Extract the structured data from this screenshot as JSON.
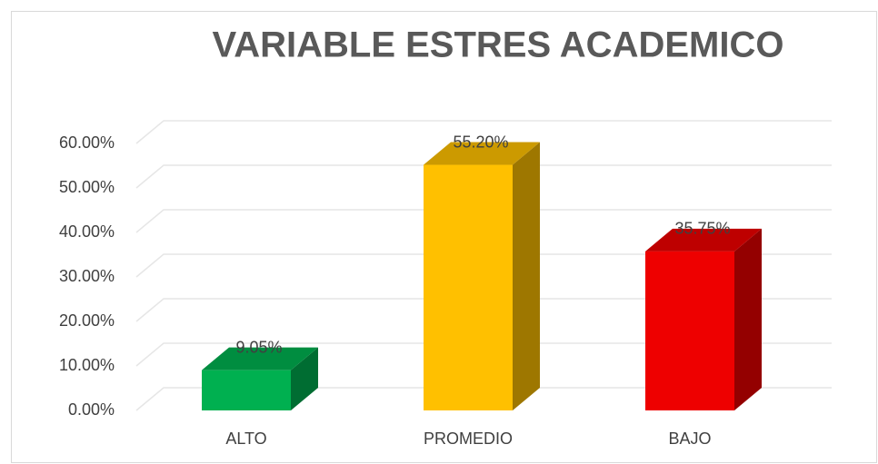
{
  "chart_data": {
    "type": "bar3d",
    "title": "VARIABLE ESTRES ACADEMICO",
    "categories": [
      "ALTO",
      "PROMEDIO",
      "BAJO"
    ],
    "values": [
      9.05,
      55.2,
      35.75
    ],
    "value_labels": [
      "9.05%",
      "55.20%",
      "35.75%"
    ],
    "colors": [
      "#00b050",
      "#ffc000",
      "#ee0000"
    ],
    "ylim": [
      0,
      60
    ],
    "yticks": [
      {
        "value": 0,
        "label": "0.00%"
      },
      {
        "value": 10,
        "label": "10.00%"
      },
      {
        "value": 20,
        "label": "20.00%"
      },
      {
        "value": 30,
        "label": "30.00%"
      },
      {
        "value": 40,
        "label": "40.00%"
      },
      {
        "value": 50,
        "label": "50.00%"
      },
      {
        "value": 60,
        "label": "60.00%"
      }
    ],
    "grid": true
  }
}
